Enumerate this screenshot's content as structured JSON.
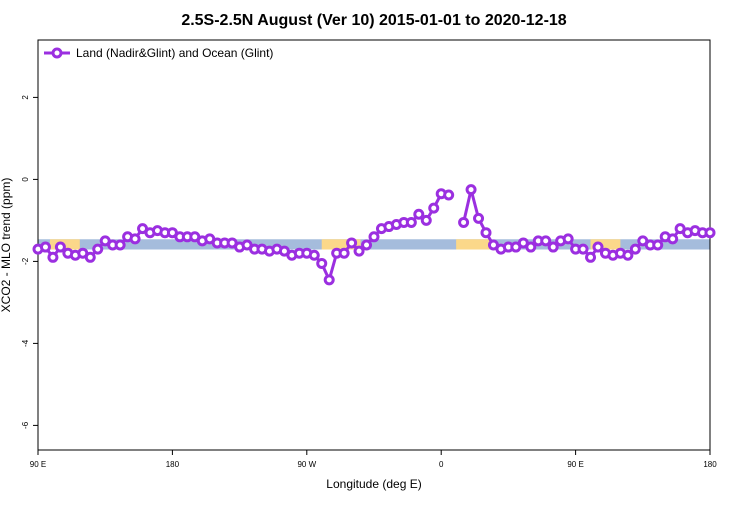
{
  "chart_data": {
    "type": "line",
    "title": "2.5S-2.5N August (Ver 10)   2015-01-01 to 2020-12-18",
    "xlabel": "Longitude (deg E)",
    "ylabel": "XCO2 - MLO trend (ppm)",
    "xlim": [
      90,
      540
    ],
    "ylim": [
      -6.6,
      3.4
    ],
    "xticks": [
      {
        "value": 90,
        "label": "90 E"
      },
      180,
      {
        "value": 270,
        "label": "90 W"
      },
      {
        "value": 360,
        "label": "0"
      },
      {
        "value": 450,
        "label": "90 E"
      },
      {
        "value": 540,
        "label": "180"
      }
    ],
    "yticks": [
      -6,
      -4,
      -2,
      0,
      2
    ],
    "legend": "top-left",
    "band": {
      "ylim": [
        -1.46,
        -1.71
      ],
      "color": "#a5bcdc",
      "highlight_color": "#fbd88a",
      "highlights": [
        [
          98,
          118
        ],
        [
          280,
          306
        ],
        [
          370,
          394
        ],
        [
          460,
          480
        ]
      ]
    },
    "x": [
      90,
      95,
      100,
      105,
      110,
      115,
      120,
      125,
      130,
      135,
      140,
      145,
      150,
      155,
      160,
      165,
      170,
      175,
      180,
      185,
      190,
      195,
      200,
      205,
      210,
      215,
      220,
      225,
      230,
      235,
      240,
      245,
      250,
      255,
      260,
      265,
      270,
      275,
      280,
      285,
      290,
      295,
      300,
      305,
      310,
      315,
      320,
      325,
      330,
      335,
      340,
      345,
      350,
      355,
      360,
      365,
      370,
      375,
      380,
      385,
      390,
      395,
      400,
      405,
      410,
      415,
      420,
      425,
      430,
      435,
      440,
      445,
      450,
      455,
      460,
      465,
      470,
      475,
      480,
      485,
      490,
      495,
      500,
      505,
      510,
      515,
      520,
      525,
      530,
      535,
      540
    ],
    "series": [
      {
        "name": "Land (Nadir&Glint) and Ocean (Glint)",
        "color": "#9b2fe0",
        "values": [
          -1.7,
          -1.65,
          -1.9,
          -1.65,
          -1.8,
          -1.85,
          -1.8,
          -1.9,
          -1.7,
          -1.5,
          -1.6,
          -1.6,
          -1.4,
          -1.45,
          -1.2,
          -1.3,
          -1.25,
          -1.3,
          -1.3,
          -1.4,
          -1.4,
          -1.4,
          -1.5,
          -1.45,
          -1.55,
          -1.55,
          -1.55,
          -1.65,
          -1.6,
          -1.7,
          -1.7,
          -1.75,
          -1.7,
          -1.75,
          -1.85,
          -1.8,
          -1.8,
          -1.85,
          -2.05,
          -2.45,
          -1.8,
          -1.8,
          -1.55,
          -1.75,
          -1.6,
          -1.4,
          -1.2,
          -1.15,
          -1.1,
          -1.05,
          -1.05,
          -0.85,
          -1.0,
          -0.7,
          -0.35,
          -0.38,
          null,
          -1.05,
          -0.25,
          -0.95,
          -1.3,
          -1.6,
          -1.7,
          -1.65,
          -1.65,
          -1.55,
          -1.65,
          -1.5,
          -1.5,
          -1.65,
          -1.5,
          -1.45,
          -1.7,
          -1.7,
          -1.9,
          -1.65,
          -1.8,
          -1.85,
          -1.8,
          -1.85,
          -1.7,
          -1.5,
          -1.6,
          -1.6,
          -1.4,
          -1.45,
          -1.2,
          -1.3,
          -1.25,
          -1.3,
          -1.3
        ]
      }
    ]
  }
}
